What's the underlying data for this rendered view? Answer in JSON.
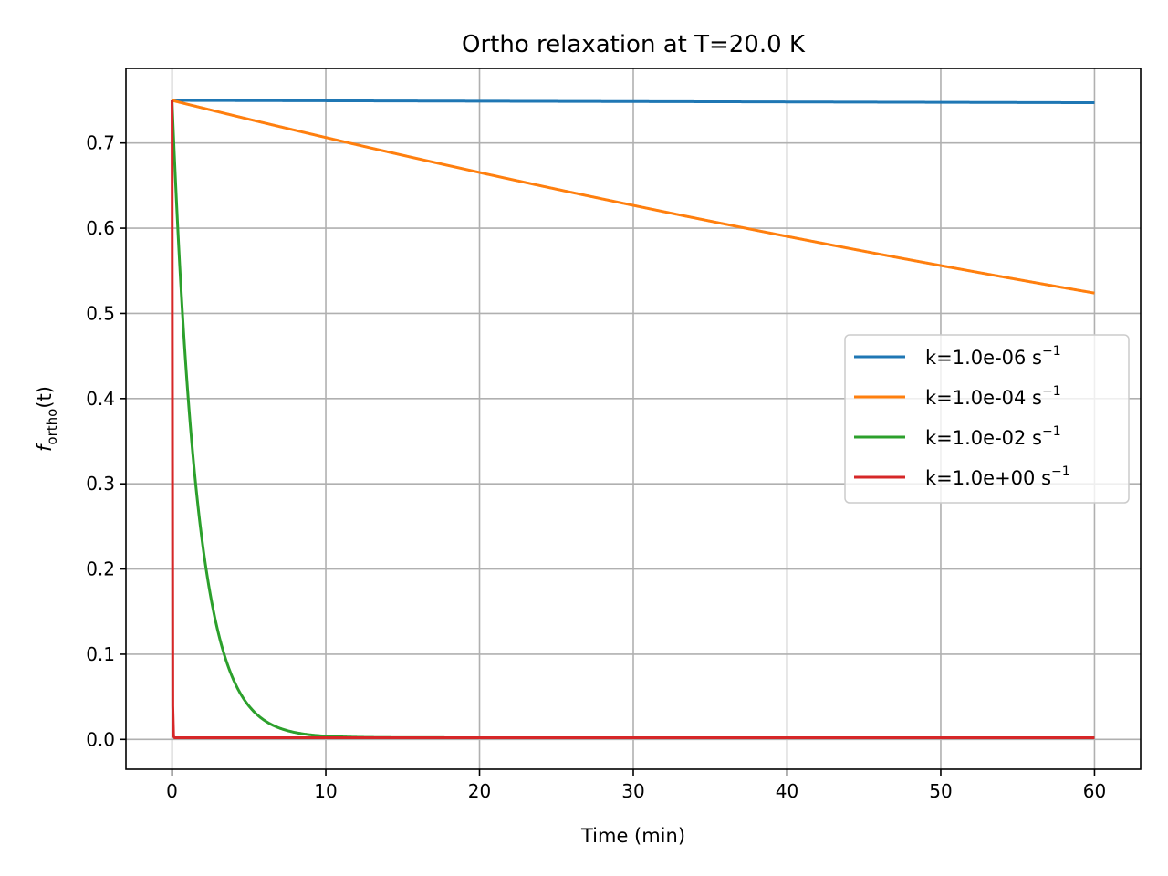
{
  "chart_data": {
    "type": "line",
    "title": "Ortho relaxation at T=20.0 K",
    "xlabel": "Time (min)",
    "ylabel": {
      "base": "f",
      "sub": "ortho",
      "rest": "(t)"
    },
    "xlim": [
      -3,
      63
    ],
    "ylim": [
      -0.035,
      0.7875
    ],
    "xticks": [
      0,
      10,
      20,
      30,
      40,
      50,
      60
    ],
    "yticks": [
      0.0,
      0.1,
      0.2,
      0.3,
      0.4,
      0.5,
      0.6,
      0.7
    ],
    "ytick_labels": [
      "0.0",
      "0.1",
      "0.2",
      "0.3",
      "0.4",
      "0.5",
      "0.6",
      "0.7"
    ],
    "grid": true,
    "legend_position": "center-right",
    "model": {
      "f_eq": 0.002,
      "f0": 0.75
    },
    "series": [
      {
        "name": "k=1.0e-06 s",
        "name_sup": "−1",
        "k": 1e-06,
        "color": "#1f77b4",
        "x": [
          0,
          10,
          20,
          30,
          40,
          50,
          60
        ],
        "y": [
          0.75,
          0.7496,
          0.7491,
          0.7487,
          0.7482,
          0.7478,
          0.7473
        ]
      },
      {
        "name": "k=1.0e-04 s",
        "name_sup": "−1",
        "k": 0.0001,
        "color": "#ff7f0e",
        "x": [
          0,
          10,
          20,
          30,
          40,
          50,
          60
        ],
        "y": [
          0.75,
          0.7066,
          0.6658,
          0.6274,
          0.5913,
          0.5573,
          0.5253
        ]
      },
      {
        "name": "k=1.0e-02 s",
        "name_sup": "−1",
        "k": 0.01,
        "color": "#2ca02c",
        "x": [
          0,
          1,
          2,
          3,
          4,
          6,
          8,
          10,
          15,
          60
        ],
        "y": [
          0.75,
          0.412,
          0.229,
          0.126,
          0.071,
          0.024,
          0.008,
          0.004,
          0.002,
          0.002
        ]
      },
      {
        "name": "k=1.0e+00 s",
        "name_sup": "−1",
        "k": 1.0,
        "color": "#d62728",
        "x": [
          0,
          0.1,
          60
        ],
        "y": [
          0.75,
          0.002,
          0.002
        ]
      }
    ]
  }
}
